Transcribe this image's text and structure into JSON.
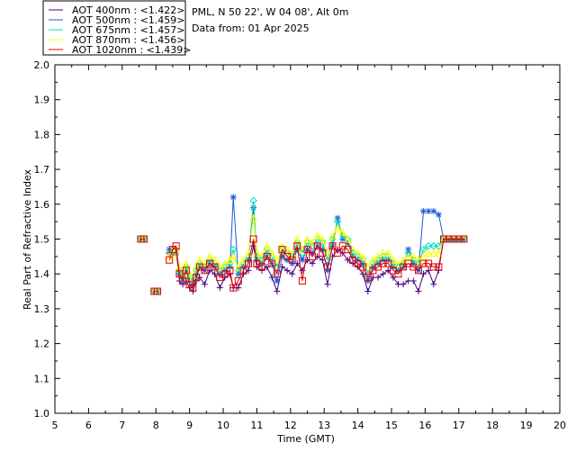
{
  "header": {
    "location": "PML, N 50 22', W 04 08', Alt 0m",
    "data_from": "Data from: 01 Apr 2025"
  },
  "legend": [
    {
      "label": "AOT  400nm : <1.422>",
      "color": "#4b0082"
    },
    {
      "label": "AOT  500nm : <1.459>",
      "color": "#1e5bd6"
    },
    {
      "label": "AOT  675nm : <1.457>",
      "color": "#00e0c0"
    },
    {
      "label": "AOT  870nm : <1.456>",
      "color": "#ffff00"
    },
    {
      "label": "AOT 1020nm : <1.439>",
      "color": "#e00000"
    }
  ],
  "chart_data": {
    "type": "scatter",
    "title": "",
    "xlabel": "Time (GMT)",
    "ylabel": "Real Part of Refractive Index",
    "xlim": [
      5,
      20
    ],
    "ylim": [
      1.0,
      2.0
    ],
    "xticks": [
      "5",
      "6",
      "7",
      "8",
      "9",
      "10",
      "11",
      "12",
      "13",
      "14",
      "15",
      "16",
      "17",
      "18",
      "19",
      "20"
    ],
    "yticks": [
      "1.0",
      "1.1",
      "1.2",
      "1.3",
      "1.4",
      "1.5",
      "1.6",
      "1.7",
      "1.8",
      "1.9",
      "2.0"
    ],
    "series": [
      {
        "name": "AOT  400nm",
        "color": "#4b0082",
        "marker": "plus",
        "x": [
          7.55,
          7.65,
          7.95,
          8.05,
          8.4,
          8.5,
          8.6,
          8.7,
          8.8,
          8.9,
          9.0,
          9.1,
          9.2,
          9.3,
          9.45,
          9.6,
          9.75,
          9.9,
          10.05,
          10.2,
          10.3,
          10.45,
          10.6,
          10.75,
          10.9,
          11.0,
          11.15,
          11.3,
          11.45,
          11.6,
          11.75,
          11.9,
          12.05,
          12.2,
          12.35,
          12.5,
          12.65,
          12.8,
          12.95,
          13.1,
          13.25,
          13.4,
          13.55,
          13.7,
          13.85,
          14.0,
          14.15,
          14.3,
          14.45,
          14.6,
          14.75,
          14.9,
          15.05,
          15.2,
          15.35,
          15.5,
          15.65,
          15.8,
          15.95,
          16.1,
          16.25,
          16.4,
          16.55,
          16.7,
          16.85,
          17.0,
          17.15
        ],
        "y": [
          1.5,
          1.5,
          1.35,
          1.35,
          1.46,
          1.46,
          1.47,
          1.38,
          1.37,
          1.38,
          1.36,
          1.35,
          1.38,
          1.39,
          1.37,
          1.41,
          1.4,
          1.36,
          1.39,
          1.4,
          1.36,
          1.36,
          1.4,
          1.41,
          1.48,
          1.42,
          1.41,
          1.42,
          1.39,
          1.35,
          1.42,
          1.41,
          1.4,
          1.43,
          1.41,
          1.44,
          1.43,
          1.45,
          1.44,
          1.37,
          1.45,
          1.47,
          1.46,
          1.44,
          1.43,
          1.42,
          1.4,
          1.35,
          1.39,
          1.39,
          1.4,
          1.41,
          1.39,
          1.37,
          1.37,
          1.38,
          1.38,
          1.35,
          1.4,
          1.41,
          1.37,
          1.41,
          1.5,
          1.5,
          1.5,
          1.5,
          1.5
        ]
      },
      {
        "name": "AOT  500nm",
        "color": "#1e5bd6",
        "marker": "star",
        "x": [
          7.55,
          7.65,
          7.95,
          8.05,
          8.4,
          8.5,
          8.6,
          8.7,
          8.8,
          8.9,
          9.0,
          9.1,
          9.2,
          9.3,
          9.45,
          9.6,
          9.75,
          9.9,
          10.05,
          10.2,
          10.3,
          10.45,
          10.6,
          10.75,
          10.9,
          11.0,
          11.15,
          11.3,
          11.45,
          11.6,
          11.75,
          11.9,
          12.05,
          12.2,
          12.35,
          12.5,
          12.65,
          12.8,
          12.95,
          13.1,
          13.25,
          13.4,
          13.55,
          13.7,
          13.85,
          14.0,
          14.15,
          14.3,
          14.45,
          14.6,
          14.75,
          14.9,
          15.05,
          15.2,
          15.35,
          15.5,
          15.65,
          15.8,
          15.95,
          16.1,
          16.25,
          16.4,
          16.55,
          16.7,
          16.85,
          17.0,
          17.15
        ],
        "y": [
          1.5,
          1.5,
          1.35,
          1.35,
          1.47,
          1.46,
          1.46,
          1.4,
          1.38,
          1.41,
          1.38,
          1.37,
          1.4,
          1.42,
          1.41,
          1.43,
          1.42,
          1.4,
          1.41,
          1.42,
          1.62,
          1.4,
          1.42,
          1.44,
          1.59,
          1.44,
          1.43,
          1.45,
          1.43,
          1.38,
          1.45,
          1.44,
          1.43,
          1.47,
          1.44,
          1.47,
          1.46,
          1.48,
          1.47,
          1.41,
          1.48,
          1.56,
          1.5,
          1.49,
          1.45,
          1.44,
          1.43,
          1.38,
          1.42,
          1.43,
          1.44,
          1.44,
          1.42,
          1.41,
          1.42,
          1.47,
          1.43,
          1.41,
          1.58,
          1.58,
          1.58,
          1.57,
          1.5,
          1.5,
          1.5,
          1.5,
          1.5
        ]
      },
      {
        "name": "AOT  675nm",
        "color": "#00e0c0",
        "marker": "diamond",
        "x": [
          7.55,
          7.65,
          7.95,
          8.05,
          8.4,
          8.5,
          8.6,
          8.7,
          8.8,
          8.9,
          9.0,
          9.1,
          9.2,
          9.3,
          9.45,
          9.6,
          9.75,
          9.9,
          10.05,
          10.2,
          10.3,
          10.45,
          10.6,
          10.75,
          10.9,
          11.0,
          11.15,
          11.3,
          11.45,
          11.6,
          11.75,
          11.9,
          12.05,
          12.2,
          12.35,
          12.5,
          12.65,
          12.8,
          12.95,
          13.1,
          13.25,
          13.4,
          13.55,
          13.7,
          13.85,
          14.0,
          14.15,
          14.3,
          14.45,
          14.6,
          14.75,
          14.9,
          15.05,
          15.2,
          15.35,
          15.5,
          15.65,
          15.8,
          15.95,
          16.1,
          16.25,
          16.4,
          16.55,
          16.7,
          16.85,
          17.0,
          17.15
        ],
        "y": [
          1.5,
          1.5,
          1.35,
          1.35,
          1.46,
          1.47,
          1.47,
          1.41,
          1.39,
          1.42,
          1.39,
          1.38,
          1.41,
          1.43,
          1.42,
          1.44,
          1.43,
          1.41,
          1.42,
          1.43,
          1.47,
          1.41,
          1.43,
          1.45,
          1.61,
          1.45,
          1.44,
          1.47,
          1.45,
          1.42,
          1.47,
          1.46,
          1.45,
          1.49,
          1.46,
          1.49,
          1.48,
          1.5,
          1.49,
          1.44,
          1.5,
          1.55,
          1.51,
          1.5,
          1.46,
          1.45,
          1.44,
          1.4,
          1.43,
          1.44,
          1.45,
          1.45,
          1.43,
          1.42,
          1.43,
          1.46,
          1.44,
          1.43,
          1.47,
          1.48,
          1.48,
          1.48,
          1.5,
          1.5,
          1.5,
          1.5,
          1.5
        ]
      },
      {
        "name": "AOT  870nm",
        "color": "#ffff00",
        "marker": "triangle",
        "x": [
          7.55,
          7.65,
          7.95,
          8.05,
          8.4,
          8.5,
          8.6,
          8.7,
          8.8,
          8.9,
          9.0,
          9.1,
          9.2,
          9.3,
          9.45,
          9.6,
          9.75,
          9.9,
          10.05,
          10.2,
          10.3,
          10.45,
          10.6,
          10.75,
          10.9,
          11.0,
          11.15,
          11.3,
          11.45,
          11.6,
          11.75,
          11.9,
          12.05,
          12.2,
          12.35,
          12.5,
          12.65,
          12.8,
          12.95,
          13.1,
          13.25,
          13.4,
          13.55,
          13.7,
          13.85,
          14.0,
          14.15,
          14.3,
          14.45,
          14.6,
          14.75,
          14.9,
          15.05,
          15.2,
          15.35,
          15.5,
          15.65,
          15.8,
          15.95,
          16.1,
          16.25,
          16.4,
          16.55,
          16.7,
          16.85,
          17.0,
          17.15
        ],
        "y": [
          1.5,
          1.5,
          1.35,
          1.35,
          1.45,
          1.46,
          1.47,
          1.42,
          1.4,
          1.43,
          1.4,
          1.39,
          1.42,
          1.44,
          1.43,
          1.45,
          1.44,
          1.42,
          1.43,
          1.44,
          1.45,
          1.42,
          1.44,
          1.46,
          1.56,
          1.46,
          1.45,
          1.48,
          1.46,
          1.44,
          1.48,
          1.47,
          1.46,
          1.5,
          1.47,
          1.5,
          1.49,
          1.51,
          1.5,
          1.46,
          1.51,
          1.53,
          1.52,
          1.5,
          1.47,
          1.46,
          1.45,
          1.42,
          1.44,
          1.45,
          1.46,
          1.46,
          1.44,
          1.43,
          1.44,
          1.45,
          1.45,
          1.44,
          1.45,
          1.46,
          1.46,
          1.46,
          1.5,
          1.5,
          1.5,
          1.5,
          1.5
        ]
      },
      {
        "name": "AOT 1020nm",
        "color": "#e00000",
        "marker": "square",
        "x": [
          7.55,
          7.65,
          7.95,
          8.05,
          8.4,
          8.5,
          8.6,
          8.7,
          8.8,
          8.9,
          9.0,
          9.1,
          9.2,
          9.3,
          9.45,
          9.6,
          9.75,
          9.9,
          10.05,
          10.2,
          10.3,
          10.45,
          10.6,
          10.75,
          10.9,
          11.0,
          11.15,
          11.3,
          11.45,
          11.6,
          11.75,
          11.9,
          12.05,
          12.2,
          12.35,
          12.5,
          12.65,
          12.8,
          12.95,
          13.1,
          13.25,
          13.4,
          13.55,
          13.7,
          13.85,
          14.0,
          14.15,
          14.3,
          14.45,
          14.6,
          14.75,
          14.9,
          15.05,
          15.2,
          15.35,
          15.5,
          15.65,
          15.8,
          15.95,
          16.1,
          16.25,
          16.4,
          16.55,
          16.7,
          16.85,
          17.0,
          17.15
        ],
        "y": [
          1.5,
          1.5,
          1.35,
          1.35,
          1.44,
          1.47,
          1.48,
          1.4,
          1.38,
          1.41,
          1.37,
          1.36,
          1.39,
          1.42,
          1.41,
          1.43,
          1.42,
          1.39,
          1.4,
          1.41,
          1.36,
          1.38,
          1.41,
          1.43,
          1.5,
          1.43,
          1.42,
          1.45,
          1.43,
          1.4,
          1.47,
          1.45,
          1.44,
          1.48,
          1.38,
          1.47,
          1.45,
          1.48,
          1.46,
          1.42,
          1.48,
          1.46,
          1.48,
          1.47,
          1.44,
          1.43,
          1.42,
          1.39,
          1.41,
          1.42,
          1.43,
          1.43,
          1.41,
          1.4,
          1.42,
          1.43,
          1.42,
          1.41,
          1.43,
          1.43,
          1.42,
          1.42,
          1.5,
          1.5,
          1.5,
          1.5,
          1.5
        ]
      }
    ]
  }
}
